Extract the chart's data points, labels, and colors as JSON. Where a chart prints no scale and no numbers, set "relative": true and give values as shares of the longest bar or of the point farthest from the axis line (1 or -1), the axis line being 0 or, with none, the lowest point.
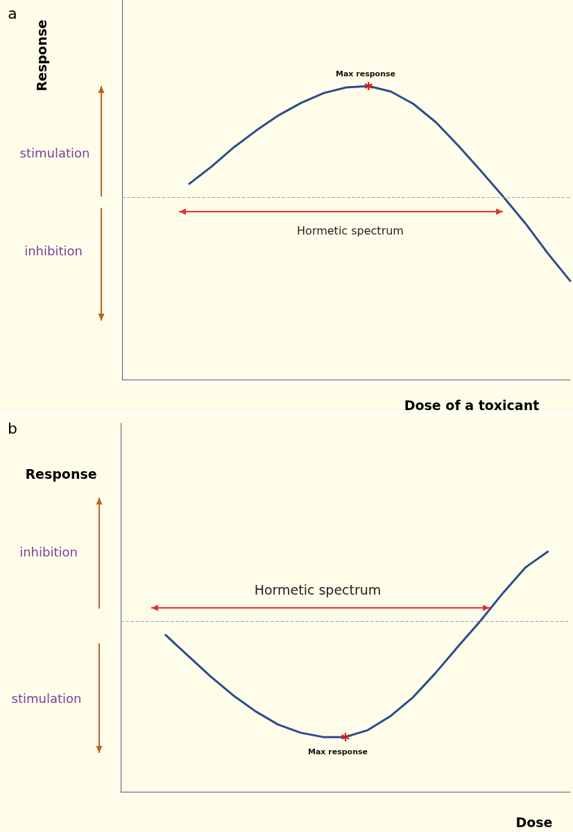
{
  "chart_data": [
    {
      "type": "line",
      "xlabel": "Dose of a toxicant",
      "ylabel": "Response",
      "relative": true,
      "grid": false,
      "marker": "none",
      "line_style": "solid",
      "categories": [
        null,
        null,
        null,
        null,
        null,
        null,
        null,
        null,
        null,
        null,
        null,
        null,
        null,
        null,
        null,
        null,
        null,
        null,
        null,
        null,
        null
      ],
      "series": [
        {
          "color": "#2e4a8c",
          "values": [
            null,
            null,
            null,
            0.667,
            0.726,
            0.792,
            0.849,
            0.901,
            0.943,
            0.976,
            0.995,
            1,
            0.981,
            0.939,
            0.877,
            0.797,
            0.712,
            0.624,
            0.532,
            0.43,
            0.336
          ]
        }
      ],
      "ref_lines": [
        {
          "axis": "y",
          "value": 0.624,
          "color": "#8ea2d8",
          "line_style": "dashed"
        }
      ],
      "annotations": [
        "Max response",
        "stimulation",
        "inhibition",
        "Hormetic spectrum",
        "a"
      ]
    },
    {
      "type": "line",
      "xlabel": "Dose",
      "ylabel": "Response",
      "relative": true,
      "grid": false,
      "marker": "none",
      "line_style": "solid",
      "categories": [
        null,
        null,
        null,
        null,
        null,
        null,
        null,
        null,
        null,
        null,
        null,
        null,
        null,
        null,
        null,
        null,
        null,
        null,
        null,
        null,
        null
      ],
      "series": [
        {
          "color": "#2e4a8c",
          "values": [
            null,
            null,
            0.653,
            0.566,
            0.48,
            0.402,
            0.335,
            0.28,
            0.246,
            0.228,
            0.228,
            0.257,
            0.315,
            0.393,
            0.494,
            0.604,
            0.711,
            0.827,
            0.934,
            1,
            null
          ]
        }
      ],
      "ref_lines": [
        {
          "axis": "y",
          "value": 0.711,
          "color": "#8ea2d8",
          "line_style": "dashed"
        }
      ],
      "annotations": [
        "Max response",
        "inhibition",
        "stimulation",
        "Hormetic spectrum",
        "b"
      ]
    }
  ]
}
